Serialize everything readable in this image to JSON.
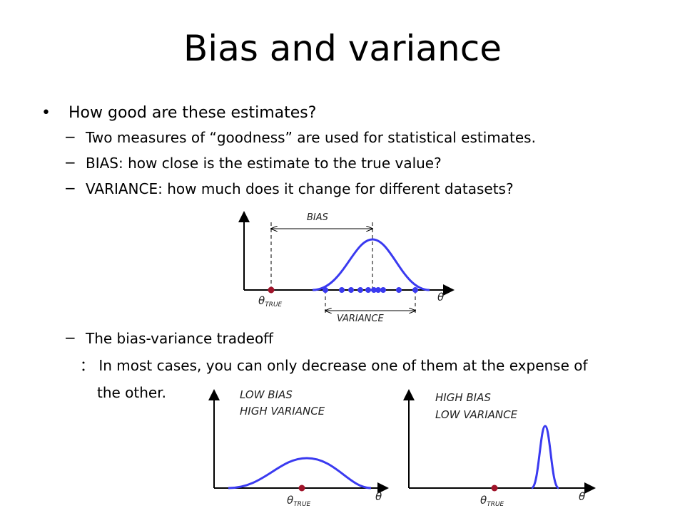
{
  "slide": {
    "title": "Bias and variance",
    "bullet": "How good are these estimates?",
    "dash_symbol": "−",
    "sub_items": [
      "Two measures of “goodness” are used for statistical estimates.",
      "BIAS:  how close is the estimate to the true value?",
      "VARIANCE:  how much does it change for different datasets?"
    ],
    "tradeoff": "The bias-variance tradeoff",
    "tradeoff_note_1": "： In most cases, you can only decrease one of them at the expense of",
    "tradeoff_note_2": "the other."
  },
  "figures": {
    "theta": "θ",
    "true_sub": "TRUE",
    "main": {
      "bias_label": "BIAS",
      "variance_label": "VARIANCE"
    },
    "left_panel": {
      "line1": "LOW BIAS",
      "line2": "HIGH VARIANCE"
    },
    "right_panel": {
      "line1": "HIGH BIAS",
      "line2": "LOW VARIANCE"
    },
    "colors": {
      "curve": "#3a3af0",
      "true_point": "#a0142a",
      "axis": "#000000"
    }
  }
}
